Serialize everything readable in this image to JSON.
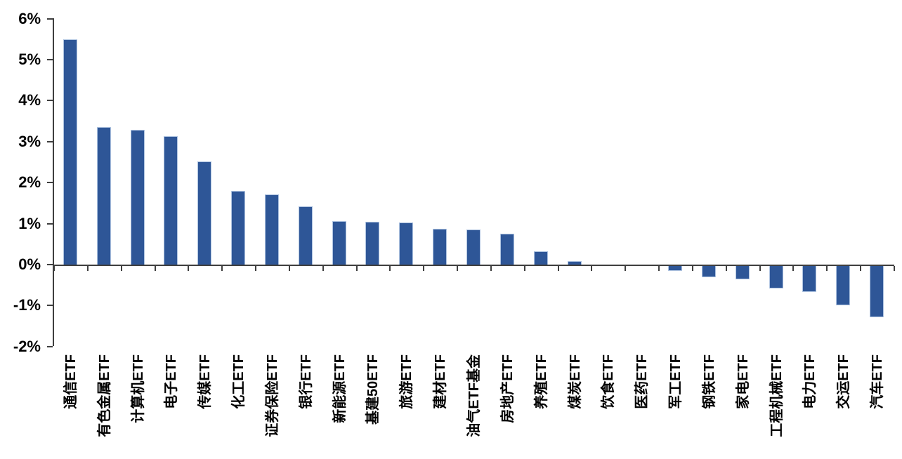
{
  "chart_data": {
    "type": "bar",
    "title": "",
    "xlabel": "",
    "ylabel": "",
    "categories": [
      "通信ETF",
      "有色金属ETF",
      "计算机ETF",
      "电子ETF",
      "传媒ETF",
      "化工ETF",
      "证券保险ETF",
      "银行ETF",
      "新能源ETF",
      "基建50ETF",
      "旅游ETF",
      "建材ETF",
      "油气ETF基金",
      "房地产ETF",
      "养殖ETF",
      "煤炭ETF",
      "饮食ETF",
      "医药ETF",
      "军工ETF",
      "钢铁ETF",
      "家电ETF",
      "工程机械ETF",
      "电力ETF",
      "交运ETF",
      "汽车ETF"
    ],
    "values": [
      5.5,
      3.35,
      3.28,
      3.13,
      2.51,
      1.8,
      1.71,
      1.42,
      1.07,
      1.05,
      1.03,
      0.88,
      0.85,
      0.75,
      0.33,
      0.09,
      0.0,
      0.0,
      -0.12,
      -0.27,
      -0.32,
      -0.55,
      -0.63,
      -0.96,
      -1.25
    ],
    "value_unit": "%",
    "ylim": [
      -2,
      6
    ],
    "y_tick_labels": [
      "6%",
      "5%",
      "4%",
      "3%",
      "2%",
      "1%",
      "0%",
      "-1%",
      "-2%"
    ],
    "y_tick_values": [
      6,
      5,
      4,
      3,
      2,
      1,
      0,
      -1,
      -2
    ],
    "grid": false,
    "legend_position": "none",
    "colors": {
      "bar_fill": "#2e5697",
      "bar_border": "#aec3e0",
      "axis": "#3f3f3f",
      "text": "#000000",
      "background": "#ffffff"
    }
  }
}
